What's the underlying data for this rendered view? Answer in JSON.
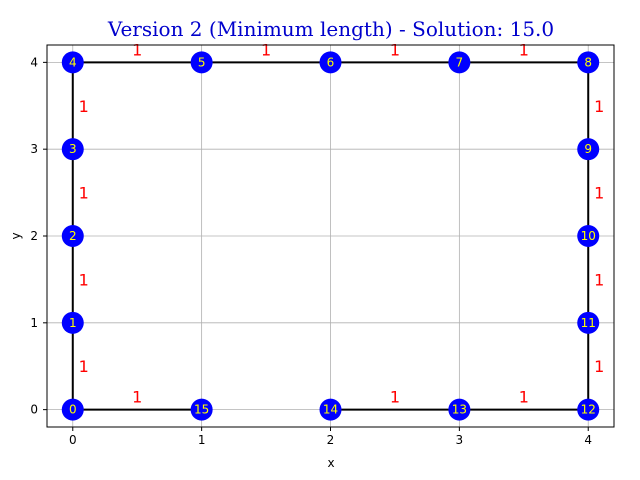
{
  "chart_data": {
    "type": "scatter",
    "title": "Version 2 (Minimum length) - Solution: 15.0",
    "xlabel": "x",
    "ylabel": "y",
    "xlim": [
      -0.2,
      4.2
    ],
    "ylim": [
      -0.2,
      4.2
    ],
    "xticks": [
      "0",
      "1",
      "2",
      "3",
      "4"
    ],
    "yticks": [
      "0",
      "1",
      "2",
      "3",
      "4"
    ],
    "grid": true,
    "colors": {
      "title": "#0000cc",
      "node": "#0000ff",
      "node_label": "#ffff00",
      "edge": "#000000",
      "edge_label": "#ff0000",
      "grid": "#b0b0b0"
    },
    "nodes": [
      {
        "id": "0",
        "x": 0,
        "y": 0
      },
      {
        "id": "1",
        "x": 0,
        "y": 1
      },
      {
        "id": "2",
        "x": 0,
        "y": 2
      },
      {
        "id": "3",
        "x": 0,
        "y": 3
      },
      {
        "id": "4",
        "x": 0,
        "y": 4
      },
      {
        "id": "5",
        "x": 1,
        "y": 4
      },
      {
        "id": "6",
        "x": 2,
        "y": 4
      },
      {
        "id": "7",
        "x": 3,
        "y": 4
      },
      {
        "id": "8",
        "x": 4,
        "y": 4
      },
      {
        "id": "9",
        "x": 4,
        "y": 3
      },
      {
        "id": "10",
        "x": 4,
        "y": 2
      },
      {
        "id": "11",
        "x": 4,
        "y": 1
      },
      {
        "id": "12",
        "x": 4,
        "y": 0
      },
      {
        "id": "13",
        "x": 3,
        "y": 0
      },
      {
        "id": "14",
        "x": 2,
        "y": 0
      },
      {
        "id": "15",
        "x": 1,
        "y": 0
      }
    ],
    "edges": [
      {
        "from": "0",
        "to": "1",
        "label": "1"
      },
      {
        "from": "1",
        "to": "2",
        "label": "1"
      },
      {
        "from": "2",
        "to": "3",
        "label": "1"
      },
      {
        "from": "3",
        "to": "4",
        "label": "1"
      },
      {
        "from": "4",
        "to": "5",
        "label": "1"
      },
      {
        "from": "5",
        "to": "6",
        "label": "1"
      },
      {
        "from": "6",
        "to": "7",
        "label": "1"
      },
      {
        "from": "7",
        "to": "8",
        "label": "1"
      },
      {
        "from": "8",
        "to": "9",
        "label": "1"
      },
      {
        "from": "9",
        "to": "10",
        "label": "1"
      },
      {
        "from": "10",
        "to": "11",
        "label": "1"
      },
      {
        "from": "11",
        "to": "12",
        "label": "1"
      },
      {
        "from": "12",
        "to": "13",
        "label": "1"
      },
      {
        "from": "13",
        "to": "14",
        "label": "1"
      },
      {
        "from": "0",
        "to": "15",
        "label": "1"
      }
    ]
  }
}
